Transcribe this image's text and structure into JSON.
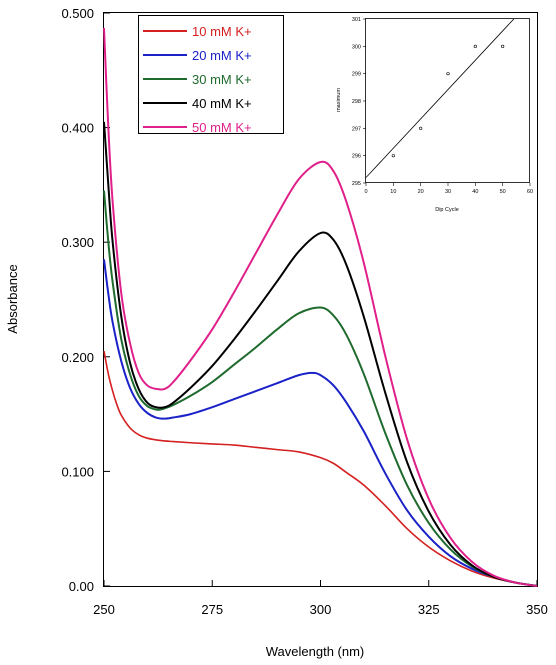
{
  "chart_data": [
    {
      "type": "line",
      "xlabel": "Wavelength (nm)",
      "ylabel": "Absorbance",
      "xlim": [
        250,
        350
      ],
      "ylim": [
        0,
        0.5
      ],
      "xticks": [
        "250",
        "275",
        "300",
        "325",
        "350"
      ],
      "yticks": [
        "0.00",
        "0.100",
        "0.200",
        "0.300",
        "0.400",
        "0.500"
      ],
      "legend_position": "top-left",
      "series": [
        {
          "name": "10 mM K+",
          "color": "#d42020",
          "x": [
            250,
            251,
            252,
            253,
            254,
            256,
            258,
            260,
            263,
            266,
            270,
            275,
            280,
            285,
            290,
            295,
            300,
            303,
            306,
            310,
            315,
            320,
            325,
            330,
            335,
            340,
            345,
            350
          ],
          "y": [
            0.205,
            0.185,
            0.17,
            0.158,
            0.149,
            0.138,
            0.132,
            0.129,
            0.127,
            0.126,
            0.125,
            0.124,
            0.123,
            0.121,
            0.119,
            0.117,
            0.112,
            0.107,
            0.099,
            0.088,
            0.07,
            0.05,
            0.034,
            0.022,
            0.013,
            0.007,
            0.003,
            0.0
          ]
        },
        {
          "name": "20 mM K+",
          "color": "#1a22c8",
          "x": [
            250,
            251,
            252,
            254,
            256,
            258,
            260,
            262,
            264,
            266,
            270,
            275,
            280,
            285,
            290,
            295,
            298,
            300,
            303,
            306,
            310,
            315,
            320,
            325,
            330,
            335,
            340,
            345,
            350
          ],
          "y": [
            0.285,
            0.255,
            0.23,
            0.196,
            0.173,
            0.159,
            0.151,
            0.147,
            0.146,
            0.147,
            0.15,
            0.156,
            0.163,
            0.17,
            0.177,
            0.184,
            0.186,
            0.184,
            0.175,
            0.16,
            0.135,
            0.098,
            0.066,
            0.043,
            0.026,
            0.015,
            0.008,
            0.003,
            0.0
          ]
        },
        {
          "name": "30 mM K+",
          "color": "#1f6b2e",
          "x": [
            250,
            251,
            252,
            254,
            256,
            258,
            260,
            262,
            263,
            264,
            266,
            270,
            275,
            280,
            285,
            290,
            295,
            300,
            303,
            306,
            310,
            315,
            320,
            325,
            330,
            335,
            340,
            345,
            350
          ],
          "y": [
            0.345,
            0.3,
            0.265,
            0.215,
            0.185,
            0.166,
            0.157,
            0.154,
            0.154,
            0.155,
            0.158,
            0.166,
            0.178,
            0.193,
            0.208,
            0.224,
            0.238,
            0.243,
            0.236,
            0.219,
            0.185,
            0.133,
            0.088,
            0.055,
            0.032,
            0.017,
            0.008,
            0.003,
            0.0
          ]
        },
        {
          "name": "40 mM K+",
          "color": "#000000",
          "x": [
            250,
            251,
            252,
            254,
            256,
            258,
            260,
            262,
            264,
            266,
            270,
            275,
            280,
            285,
            290,
            295,
            300,
            303,
            306,
            310,
            315,
            320,
            325,
            330,
            335,
            340,
            345,
            350
          ],
          "y": [
            0.405,
            0.35,
            0.3,
            0.235,
            0.195,
            0.172,
            0.16,
            0.156,
            0.156,
            0.16,
            0.173,
            0.192,
            0.215,
            0.24,
            0.266,
            0.292,
            0.308,
            0.302,
            0.28,
            0.235,
            0.168,
            0.108,
            0.065,
            0.036,
            0.018,
            0.008,
            0.003,
            0.0
          ]
        },
        {
          "name": "50 mM K+",
          "color": "#e0208a",
          "x": [
            250,
            251,
            252,
            254,
            256,
            258,
            260,
            262,
            264,
            266,
            270,
            275,
            280,
            285,
            290,
            295,
            300,
            303,
            306,
            310,
            315,
            320,
            325,
            330,
            335,
            340,
            345,
            350
          ],
          "y": [
            0.487,
            0.4,
            0.335,
            0.255,
            0.212,
            0.186,
            0.175,
            0.172,
            0.172,
            0.178,
            0.197,
            0.224,
            0.256,
            0.29,
            0.324,
            0.355,
            0.37,
            0.362,
            0.335,
            0.282,
            0.2,
            0.128,
            0.076,
            0.042,
            0.021,
            0.009,
            0.003,
            0.0
          ]
        }
      ]
    },
    {
      "type": "scatter",
      "xlabel": "Dip Cycle",
      "ylabel": "maximum",
      "xlim": [
        0,
        60
      ],
      "ylim": [
        295,
        301
      ],
      "xticks": [
        "0",
        "10",
        "20",
        "30",
        "40",
        "50",
        "60"
      ],
      "yticks": [
        "295",
        "296",
        "297",
        "298",
        "299",
        "300",
        "301"
      ],
      "points": {
        "x": [
          10,
          20,
          30,
          40,
          50
        ],
        "y": [
          296,
          297,
          299,
          300,
          300
        ]
      },
      "fit_line": {
        "x": [
          0,
          55
        ],
        "y": [
          295.2,
          301.1
        ]
      }
    }
  ]
}
